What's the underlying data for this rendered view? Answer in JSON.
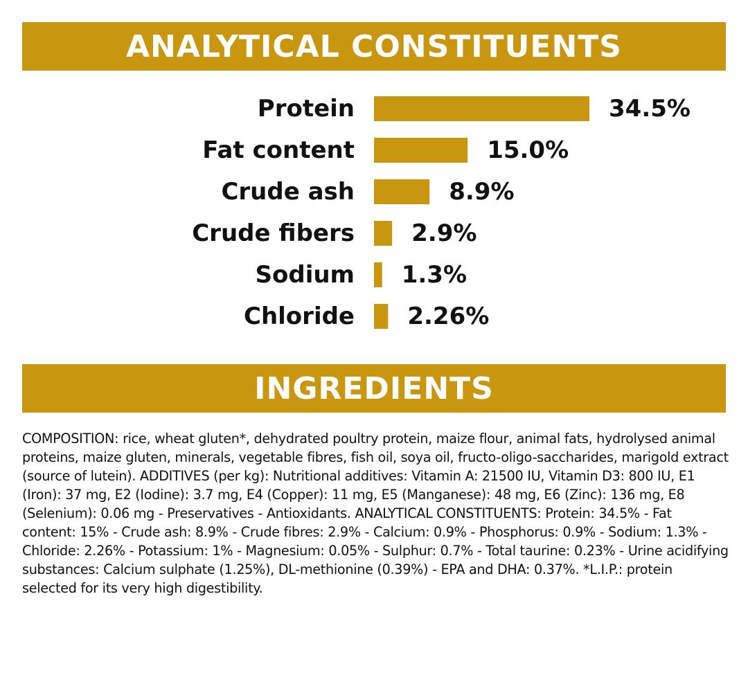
{
  "colors": {
    "accent": "#c8960f",
    "banner_text": "#ffffff",
    "text": "#111111"
  },
  "sections": {
    "constituents_title": "ANALYTICAL CONSTITUENTS",
    "ingredients_title": "INGREDIENTS"
  },
  "chart_data": {
    "type": "bar",
    "orientation": "horizontal",
    "title": "ANALYTICAL CONSTITUENTS",
    "categories": [
      "Protein",
      "Fat content",
      "Crude ash",
      "Crude fibers",
      "Sodium",
      "Chloride"
    ],
    "values": [
      34.5,
      15.0,
      8.9,
      2.9,
      1.3,
      2.26
    ],
    "value_labels": [
      "34.5%",
      "15.0%",
      "8.9%",
      "2.9%",
      "1.3%",
      "2.26%"
    ],
    "unit": "%",
    "xlim": [
      0,
      34.5
    ],
    "xlabel": "",
    "ylabel": "",
    "grid": false
  },
  "ingredients": {
    "composition": "COMPOSITION: rice, wheat gluten*, dehydrated poultry protein, maize flour, animal fats, hydrolysed animal proteins, maize gluten, minerals, vegetable fibres, fish oil, soya oil, fructo-oligo-saccharides, marigold extract (source of lutein). ADDITIVES (per kg): Nutritional additives: Vitamin A: 21500 IU, Vitamin D3: 800 IU, E1 (Iron): 37 mg, E2 (Iodine): 3.7 mg, E4 (Copper): 11 mg, E5 (Manganese): 48 mg, E6 (Zinc): 136 mg, E8 (Selenium): 0.06 mg - Preservatives - Antioxidants. ANALYTICAL CONSTITUENTS: Protein: 34.5% - Fat content: 15% - Crude ash: 8.9% - Crude fibres: 2.9% - Calcium: 0.9% - Phosphorus: 0.9% - Sodium: 1.3% - Chloride: 2.26% - Potassium: 1% - Magnesium: 0.05% - Sulphur: 0.7% - Total taurine: 0.23% - Urine acidifying substances: Calcium sulphate (1.25%), DL-methionine (0.39%) - EPA and DHA: 0.37%. *L.I.P.: protein selected for its very high digestibility."
  }
}
